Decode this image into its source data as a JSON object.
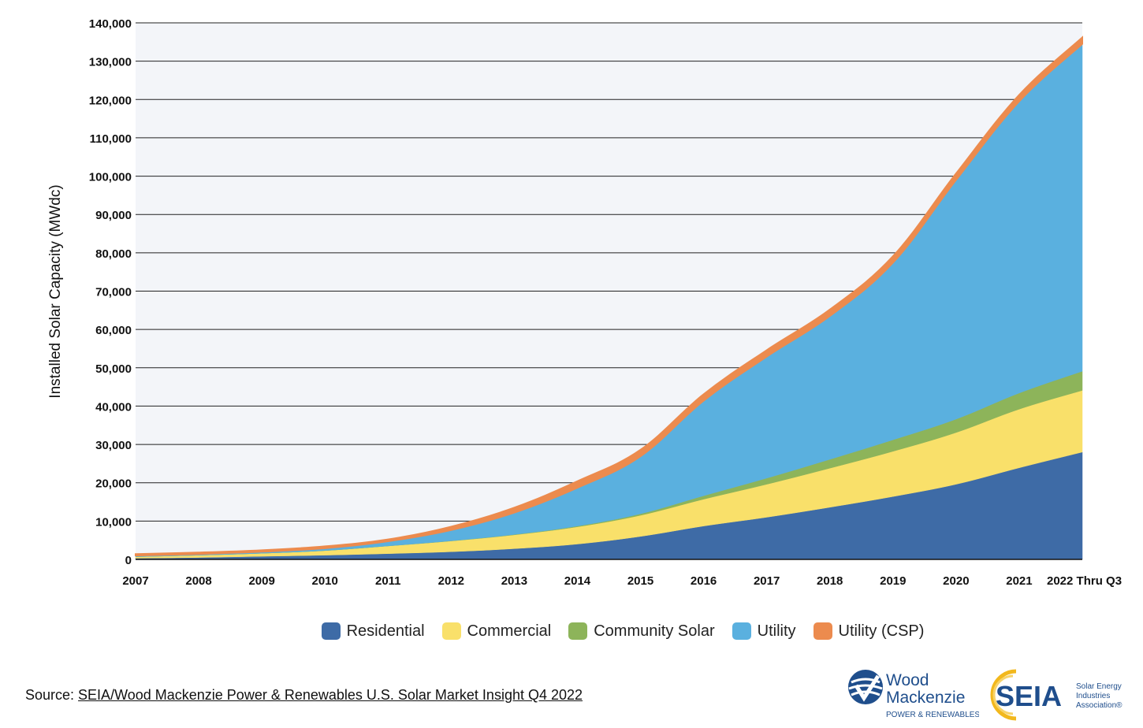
{
  "chart_data": {
    "type": "area",
    "stacked": true,
    "ylabel": "Installed Solar Capacity (MWdc)",
    "xlabel": "",
    "ylim": [
      0,
      140000
    ],
    "yticks": [
      "0",
      "10,000",
      "20,000",
      "30,000",
      "40,000",
      "50,000",
      "60,000",
      "70,000",
      "80,000",
      "90,000",
      "100,000",
      "110,000",
      "120,000",
      "130,000",
      "140,000"
    ],
    "ytick_values": [
      0,
      10000,
      20000,
      30000,
      40000,
      50000,
      60000,
      70000,
      80000,
      90000,
      100000,
      110000,
      120000,
      130000,
      140000
    ],
    "grid": "horizontal",
    "legend_position": "bottom",
    "categories": [
      "2007",
      "2008",
      "2009",
      "2010",
      "2011",
      "2012",
      "2013",
      "2014",
      "2015",
      "2016",
      "2017",
      "2018",
      "2019",
      "2020",
      "2021",
      "2022 Thru Q3"
    ],
    "series": [
      {
        "name": "Residential",
        "color": "#3E6BA6",
        "values": [
          300,
          500,
          800,
          1100,
          1500,
          2000,
          2800,
          4000,
          6000,
          8700,
          11000,
          13600,
          16400,
          19600,
          23900,
          28000
        ]
      },
      {
        "name": "Commercial",
        "color": "#F9E06A",
        "values": [
          400,
          600,
          800,
          1200,
          2000,
          2800,
          3600,
          4500,
          5500,
          7000,
          8600,
          10200,
          11800,
          13500,
          15300,
          16100
        ]
      },
      {
        "name": "Community Solar",
        "color": "#8DB45A",
        "values": [
          0,
          0,
          0,
          10,
          20,
          50,
          100,
          200,
          400,
          900,
          1600,
          2300,
          3000,
          3500,
          4200,
          5000
        ]
      },
      {
        "name": "Utility",
        "color": "#5AB0DF",
        "values": [
          300,
          300,
          400,
          600,
          1200,
          2800,
          5700,
          10000,
          15000,
          24800,
          31700,
          37400,
          46200,
          62400,
          76100,
          85400
        ]
      },
      {
        "name": "Utility (CSP)",
        "color": "#EC8B4E",
        "values": [
          400,
          400,
          400,
          500,
          500,
          900,
          1300,
          1700,
          1700,
          1700,
          1700,
          1700,
          1700,
          1700,
          1700,
          1700
        ]
      }
    ]
  },
  "source": {
    "prefix": "Source: ",
    "link_text": "SEIA/Wood Mackenzie Power & Renewables U.S. Solar Market Insight Q4 2022"
  },
  "logos": {
    "wood_mackenzie": {
      "line1": "Wood",
      "line2": "Mackenzie",
      "tagline": "POWER & RENEWABLES",
      "color": "#1F4E8C"
    },
    "seia": {
      "mark": "SEIA",
      "text1": "Solar Energy",
      "text2": "Industries",
      "text3": "Association®",
      "color": "#1F4E8C",
      "accent": "#F2B81D"
    }
  }
}
